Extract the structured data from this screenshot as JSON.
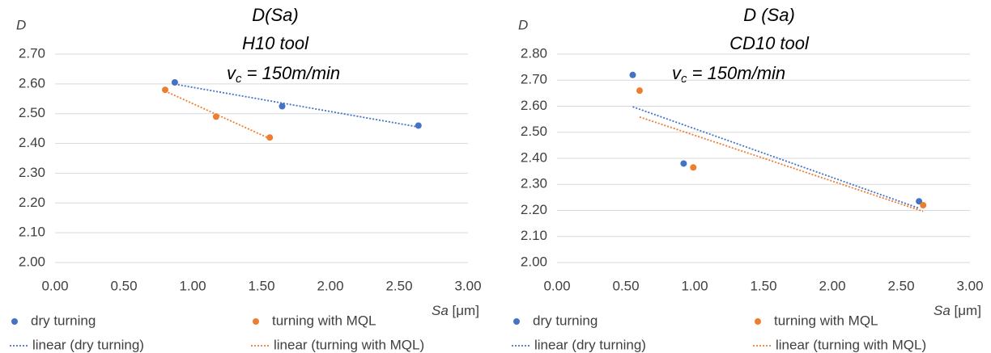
{
  "chart_data": [
    {
      "type": "scatter",
      "title": [
        "D(Sa)",
        "H10 tool"
      ],
      "annotation": [
        "v",
        "c",
        " = 150m/min"
      ],
      "y_label": "D",
      "x_label": [
        "Sa",
        " [μm]"
      ],
      "xlim": [
        0,
        3
      ],
      "ylim": [
        2,
        2.7
      ],
      "xticks": [
        {
          "value": 0,
          "label": "0.00"
        },
        {
          "value": 0.5,
          "label": "0.50"
        },
        {
          "value": 1,
          "label": "1.00"
        },
        {
          "value": 1.5,
          "label": "1.50"
        },
        {
          "value": 2,
          "label": "2.00"
        },
        {
          "value": 2.5,
          "label": "2.50"
        },
        {
          "value": 3,
          "label": "3.00"
        }
      ],
      "yticks": [
        {
          "value": 2,
          "label": "2.00"
        },
        {
          "value": 2.1,
          "label": "2.10"
        },
        {
          "value": 2.2,
          "label": "2.20"
        },
        {
          "value": 2.3,
          "label": "2.30"
        },
        {
          "value": 2.4,
          "label": "2.40"
        },
        {
          "value": 2.5,
          "label": "2.50"
        },
        {
          "value": 2.6,
          "label": "2.60"
        },
        {
          "value": 2.7,
          "label": "2.70"
        }
      ],
      "grid": true,
      "series": [
        {
          "name": "dry turning",
          "trendline": "linear (dry turning)",
          "color": "#4472c4",
          "x": [
            0.87,
            1.65,
            2.64
          ],
          "values": [
            2.605,
            2.525,
            2.46
          ]
        },
        {
          "name": "turning with MQL",
          "trendline": "linear (turning with MQL)",
          "color": "#ed7d31",
          "x": [
            0.8,
            1.17,
            1.56
          ],
          "values": [
            2.58,
            2.49,
            2.42
          ]
        }
      ]
    },
    {
      "type": "scatter",
      "title": [
        "D (Sa)",
        "CD10 tool"
      ],
      "annotation": [
        "v",
        "c",
        " = 150m/min"
      ],
      "y_label": "D",
      "x_label": [
        "Sa",
        " [μm]"
      ],
      "xlim": [
        0,
        3
      ],
      "ylim": [
        2,
        2.8
      ],
      "xticks": [
        {
          "value": 0,
          "label": "0.00"
        },
        {
          "value": 0.5,
          "label": "0.50"
        },
        {
          "value": 1,
          "label": "1.00"
        },
        {
          "value": 1.5,
          "label": "1.50"
        },
        {
          "value": 2,
          "label": "2.00"
        },
        {
          "value": 2.5,
          "label": "2.50"
        },
        {
          "value": 3,
          "label": "3.00"
        }
      ],
      "yticks": [
        {
          "value": 2,
          "label": "2.00"
        },
        {
          "value": 2.1,
          "label": "2.10"
        },
        {
          "value": 2.2,
          "label": "2.20"
        },
        {
          "value": 2.3,
          "label": "2.30"
        },
        {
          "value": 2.4,
          "label": "2.40"
        },
        {
          "value": 2.5,
          "label": "2.50"
        },
        {
          "value": 2.6,
          "label": "2.60"
        },
        {
          "value": 2.7,
          "label": "2.70"
        },
        {
          "value": 2.8,
          "label": "2.80"
        }
      ],
      "grid": true,
      "series": [
        {
          "name": "dry turning",
          "trendline": "linear (dry turning)",
          "color": "#4472c4",
          "x": [
            0.55,
            0.92,
            2.63
          ],
          "values": [
            2.72,
            2.38,
            2.235
          ]
        },
        {
          "name": "turning with MQL",
          "trendline": "linear (turning with MQL)",
          "color": "#ed7d31",
          "x": [
            0.6,
            0.99,
            2.66
          ],
          "values": [
            2.66,
            2.365,
            2.22
          ]
        }
      ]
    }
  ]
}
